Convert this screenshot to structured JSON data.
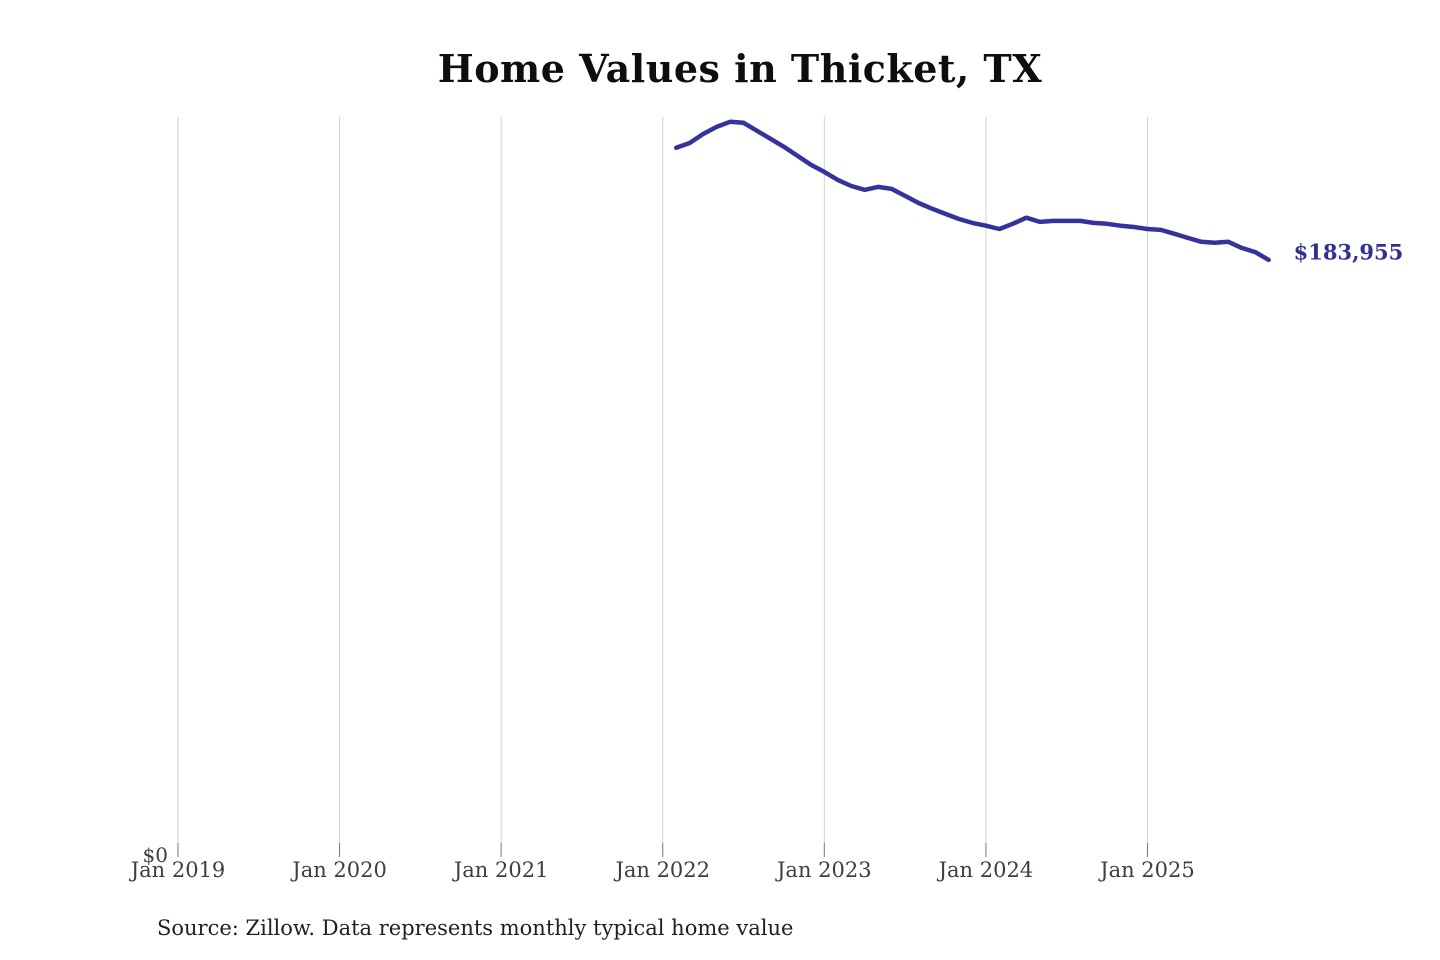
{
  "title": "Home Values in Thicket, TX",
  "source_note": "Source: Zillow. Data represents monthly typical home value",
  "y_axis": {
    "zero_label": "$0"
  },
  "end_label": "$183,955",
  "colors": {
    "line": "#36329b",
    "end_label_text": "#322f94",
    "gridline": "#d2d2d2",
    "axis_tick": "#777777",
    "axis_text": "#3e3e3e",
    "title_text": "#0e0e0e",
    "source_text": "#1f1f1f",
    "background": "#ffffff"
  },
  "chart_data": {
    "type": "line",
    "title": "Home Values in Thicket, TX",
    "xlabel": "",
    "ylabel": "",
    "legend": "none",
    "grid": "vertical-only",
    "ylim": [
      0,
      228500
    ],
    "x_ticks": [
      "Jan 2019",
      "Jan 2020",
      "Jan 2021",
      "Jan 2022",
      "Jan 2023",
      "Jan 2024",
      "Jan 2025"
    ],
    "x_tick_years": [
      2019,
      2020,
      2021,
      2022,
      2023,
      2024,
      2025
    ],
    "end_label": "$183,955",
    "last_value": 183955,
    "series": [
      {
        "name": "Monthly typical home value",
        "months": [
          "2022-02",
          "2022-03",
          "2022-04",
          "2022-05",
          "2022-06",
          "2022-07",
          "2022-08",
          "2022-09",
          "2022-10",
          "2022-11",
          "2022-12",
          "2023-01",
          "2023-02",
          "2023-03",
          "2023-04",
          "2023-05",
          "2023-06",
          "2023-07",
          "2023-08",
          "2023-09",
          "2023-10",
          "2023-11",
          "2023-12",
          "2024-01",
          "2024-02",
          "2024-03",
          "2024-04",
          "2024-05",
          "2024-06",
          "2024-07",
          "2024-08",
          "2024-09",
          "2024-10",
          "2024-11",
          "2024-12",
          "2025-01",
          "2025-02",
          "2025-03",
          "2025-04",
          "2025-05",
          "2025-06",
          "2025-07",
          "2025-08",
          "2025-09",
          "2025-10"
        ],
        "values": [
          218900,
          220400,
          223200,
          225400,
          227000,
          226700,
          224200,
          221700,
          219200,
          216400,
          213600,
          211400,
          208900,
          207000,
          205800,
          206700,
          206100,
          203900,
          201700,
          199900,
          198300,
          196700,
          195500,
          194600,
          193600,
          195200,
          197100,
          195800,
          196100,
          196100,
          196100,
          195500,
          195200,
          194600,
          194200,
          193600,
          193300,
          192100,
          190800,
          189600,
          189300,
          189600,
          187700,
          186400,
          183955
        ]
      }
    ]
  }
}
